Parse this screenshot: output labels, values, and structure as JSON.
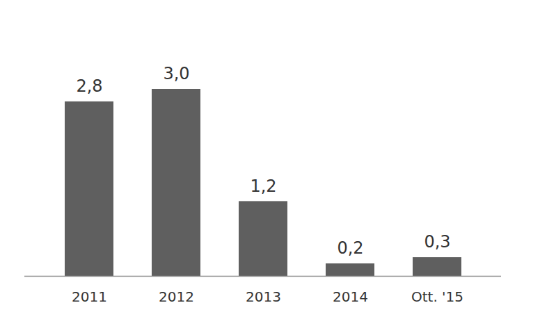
{
  "chart_data": {
    "type": "bar",
    "categories": [
      "2011",
      "2012",
      "2013",
      "2014",
      "Ott. '15"
    ],
    "values": [
      2.8,
      3.0,
      1.2,
      0.2,
      0.3
    ],
    "value_labels": [
      "2,8",
      "3,0",
      "1,2",
      "0,2",
      "0,3"
    ],
    "color": "#5f5f5f",
    "data_labels": true,
    "tick_labels": "x",
    "grid": false
  }
}
